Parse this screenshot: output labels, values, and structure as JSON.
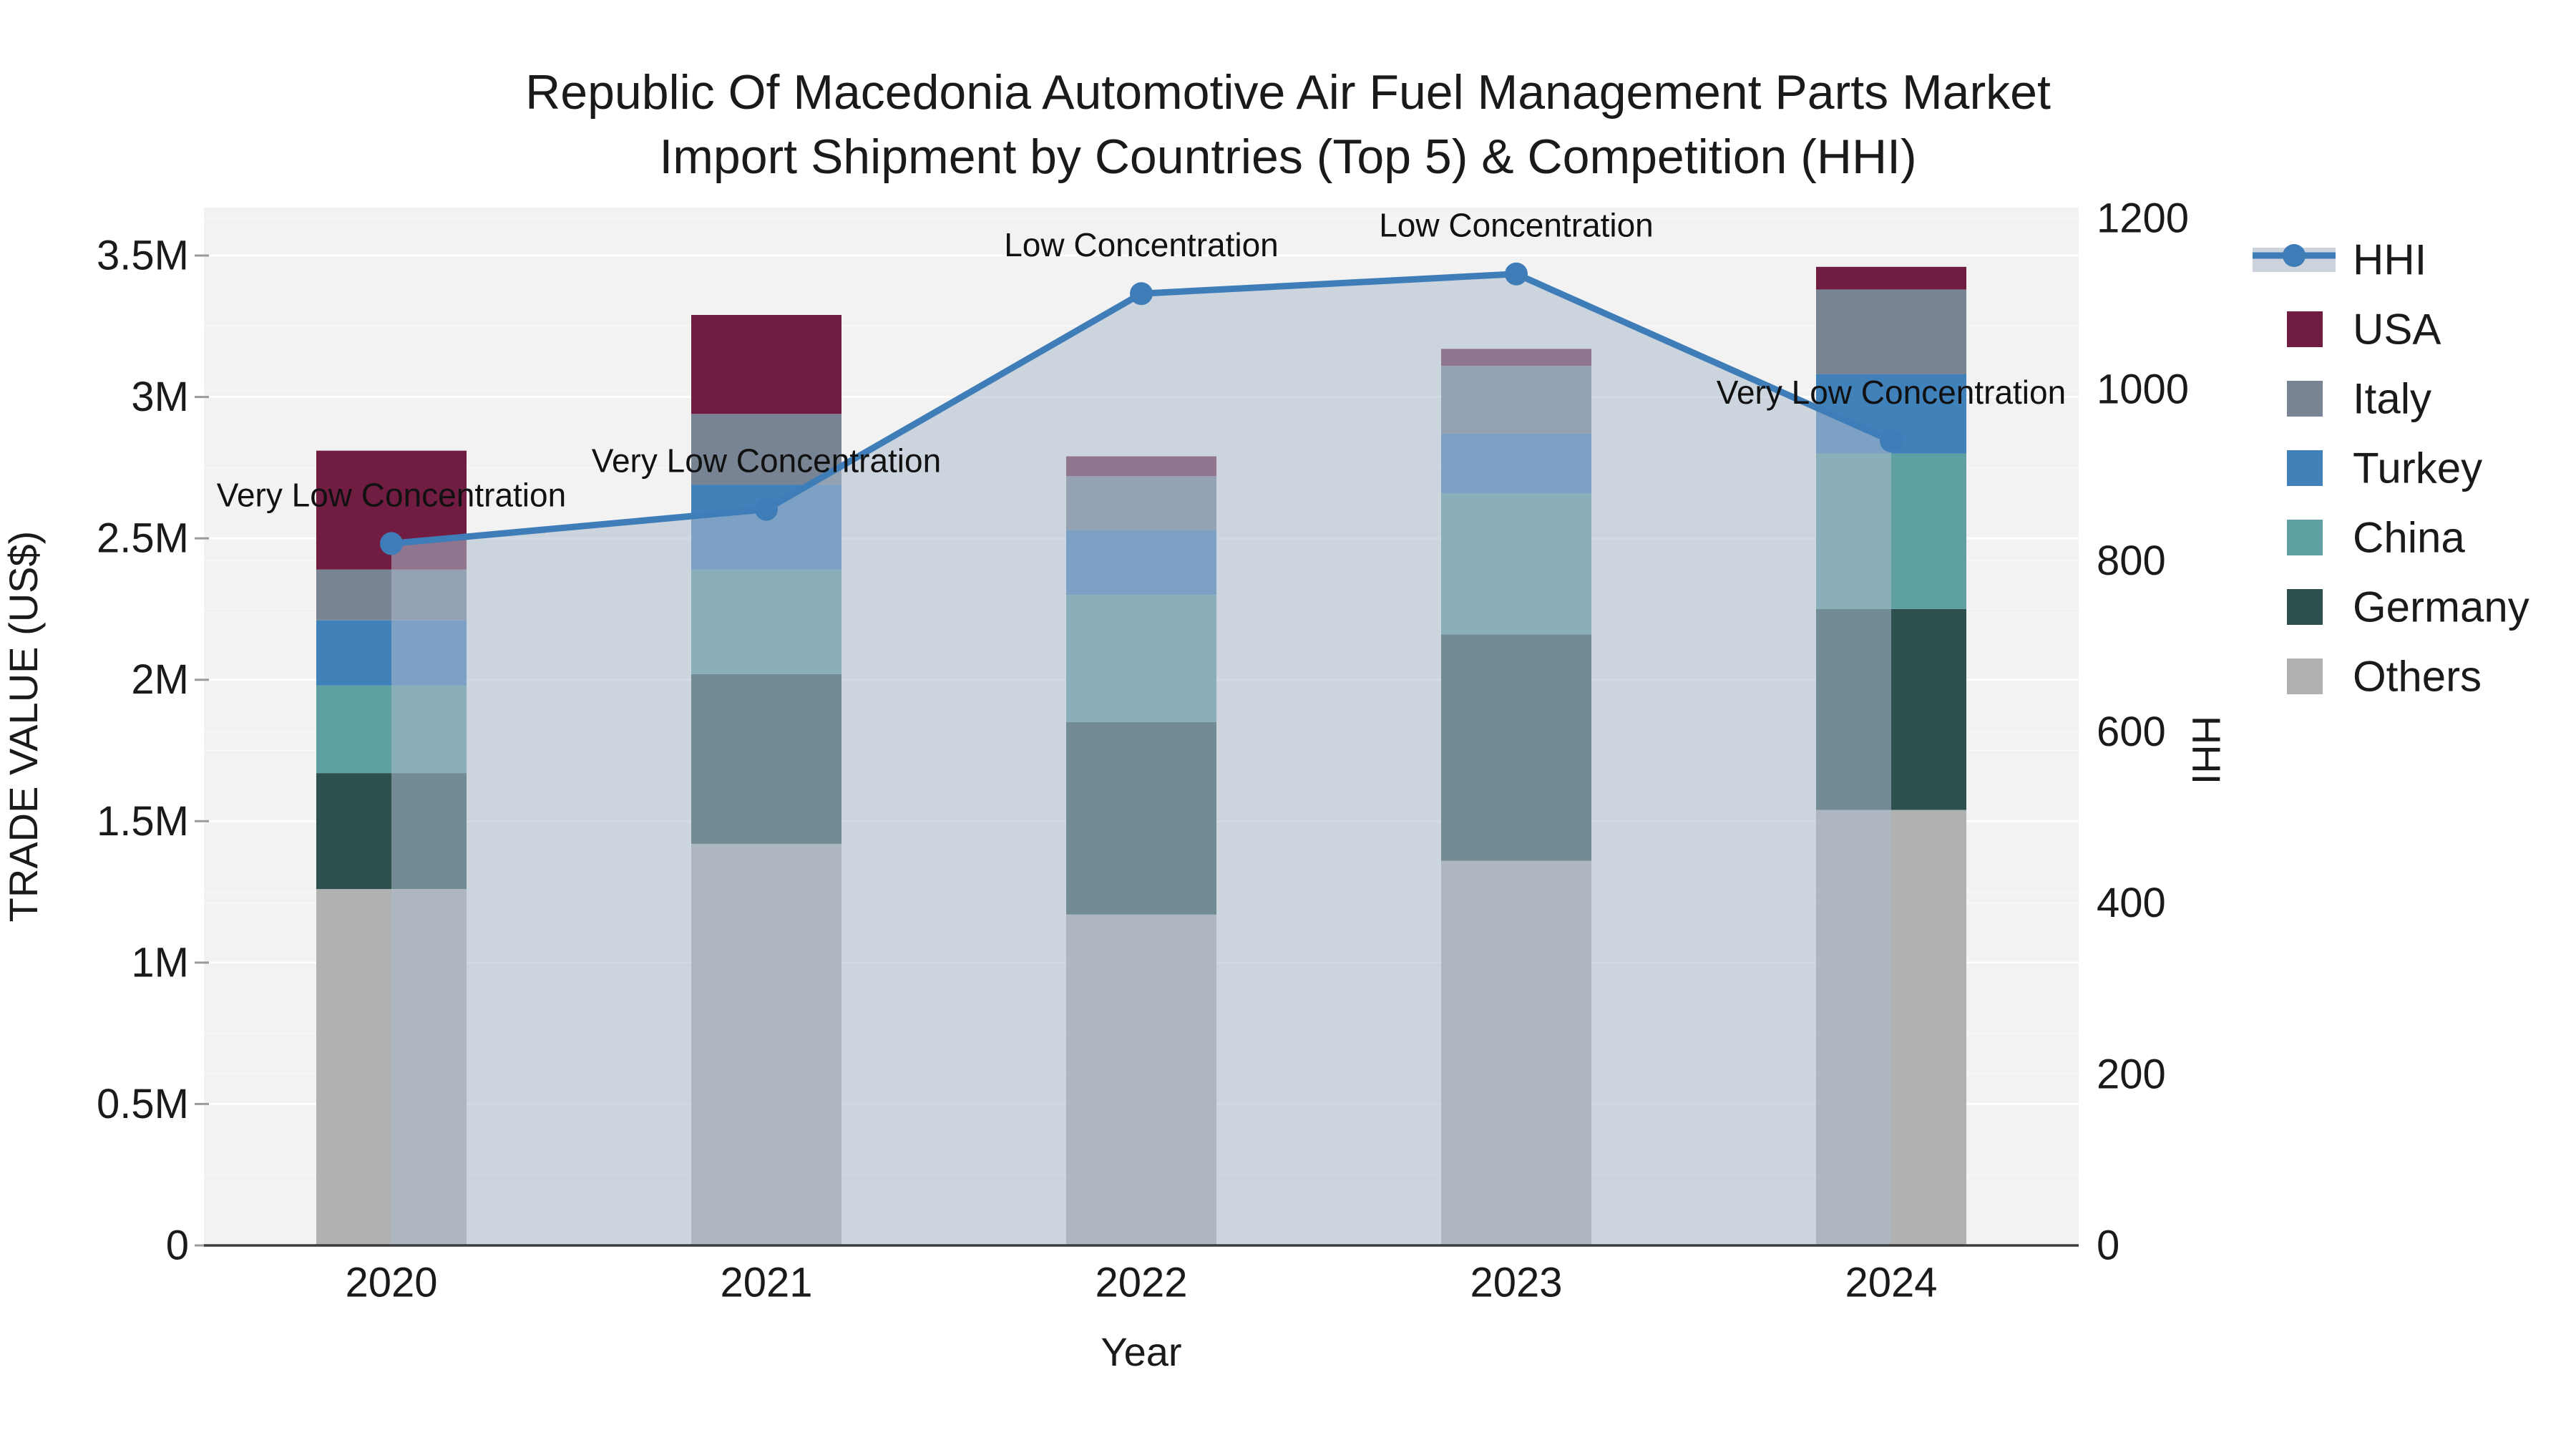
{
  "title": {
    "line1": "Republic Of Macedonia Automotive Air Fuel Management Parts Market",
    "line2": "Import Shipment by Countries (Top 5) & Competition (HHI)"
  },
  "colors": {
    "plot_background": "#f2f2f2",
    "figure_background": "#ffffff",
    "gridline": "#ffffff",
    "axis_line": "#3c3c3c",
    "text": "#1a1a1a",
    "hhi_line": "#3f7db8",
    "hhi_area_fill": "rgba(173,187,205,0.55)"
  },
  "chart_data": {
    "type": "bar",
    "subtype": "stacked-bars-with-line-overlay",
    "unit_left": "US$ millions",
    "categories": [
      "2020",
      "2021",
      "2022",
      "2023",
      "2024"
    ],
    "bar_series": [
      {
        "name": "USA",
        "color": "#701d41",
        "values": [
          0.42,
          0.35,
          0.07,
          0.06,
          0.08
        ]
      },
      {
        "name": "Italy",
        "color": "#788493",
        "values": [
          0.18,
          0.25,
          0.19,
          0.24,
          0.3
        ]
      },
      {
        "name": "Turkey",
        "color": "#4081b9",
        "values": [
          0.23,
          0.3,
          0.23,
          0.21,
          0.28
        ]
      },
      {
        "name": "China",
        "color": "#5fa1a3",
        "values": [
          0.31,
          0.37,
          0.45,
          0.5,
          0.55
        ]
      },
      {
        "name": "Germany",
        "color": "#2d504e",
        "values": [
          0.41,
          0.6,
          0.68,
          0.8,
          0.71
        ]
      },
      {
        "name": "Others",
        "color": "#b0b2b1",
        "values": [
          1.26,
          1.42,
          1.17,
          1.36,
          1.54
        ]
      }
    ],
    "bar_totals": [
      2.81,
      3.29,
      2.79,
      3.17,
      3.46
    ],
    "stack_order_bottom_to_top": [
      "Others",
      "Germany",
      "China",
      "Turkey",
      "Italy",
      "USA"
    ],
    "line_series": {
      "name": "HHI",
      "values": [
        820,
        860,
        1112,
        1135,
        940
      ]
    },
    "annotations": [
      "Very Low Concentration",
      "Very Low Concentration",
      "Low Concentration",
      "Low Concentration",
      "Very Low Concentration"
    ],
    "x": {
      "title": "Year"
    },
    "y_left": {
      "title": "TRADE VALUE (US$)",
      "ticks": [
        "0",
        "0.5M",
        "1M",
        "1.5M",
        "2M",
        "2.5M",
        "3M",
        "3.5M"
      ],
      "tick_values": [
        0,
        0.5,
        1,
        1.5,
        2,
        2.5,
        3,
        3.5
      ],
      "range_max": 3.67
    },
    "y_right": {
      "title": "HHI",
      "ticks": [
        "0",
        "200",
        "400",
        "600",
        "800",
        "1000",
        "1200"
      ],
      "tick_values": [
        0,
        200,
        400,
        600,
        800,
        1000,
        1200
      ],
      "range_max": 1212
    },
    "legend": [
      "HHI",
      "USA",
      "Italy",
      "Turkey",
      "China",
      "Germany",
      "Others"
    ],
    "legend_position": "right"
  }
}
